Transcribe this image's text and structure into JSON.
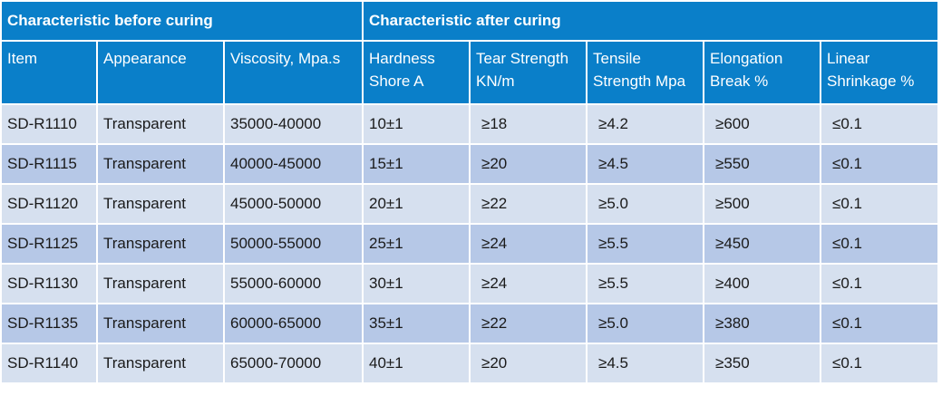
{
  "groups": {
    "before": "Characteristic before curing",
    "after": "Characteristic after curing"
  },
  "columns": [
    [
      "Item"
    ],
    [
      "Appearance"
    ],
    [
      "Viscosity, Mpa.s"
    ],
    [
      "Hardness",
      "Shore A"
    ],
    [
      "Tear Strength",
      "KN/m"
    ],
    [
      "Tensile",
      "Strength Mpa"
    ],
    [
      "Elongation",
      "Break %"
    ],
    [
      "Linear",
      "Shrinkage %"
    ]
  ],
  "rows": [
    [
      "SD-R1110",
      "Transparent",
      "35000-40000",
      "10±1",
      "≥18",
      "≥4.2",
      "≥600",
      "≤0.1"
    ],
    [
      "SD-R1115",
      "Transparent",
      "40000-45000",
      "15±1",
      "≥20",
      "≥4.5",
      "≥550",
      "≤0.1"
    ],
    [
      "SD-R1120",
      "Transparent",
      "45000-50000",
      "20±1",
      "≥22",
      "≥5.0",
      "≥500",
      "≤0.1"
    ],
    [
      "SD-R1125",
      "Transparent",
      "50000-55000",
      "25±1",
      "≥24",
      "≥5.5",
      "≥450",
      "≤0.1"
    ],
    [
      "SD-R1130",
      "Transparent",
      "55000-60000",
      "30±1",
      "≥24",
      "≥5.5",
      "≥400",
      "≤0.1"
    ],
    [
      "SD-R1135",
      "Transparent",
      "60000-65000",
      "35±1",
      "≥22",
      "≥5.0",
      "≥380",
      "≤0.1"
    ],
    [
      "SD-R1140",
      "Transparent",
      "65000-70000",
      "40±1",
      "≥20",
      "≥4.5",
      "≥350",
      "≤0.1"
    ]
  ]
}
